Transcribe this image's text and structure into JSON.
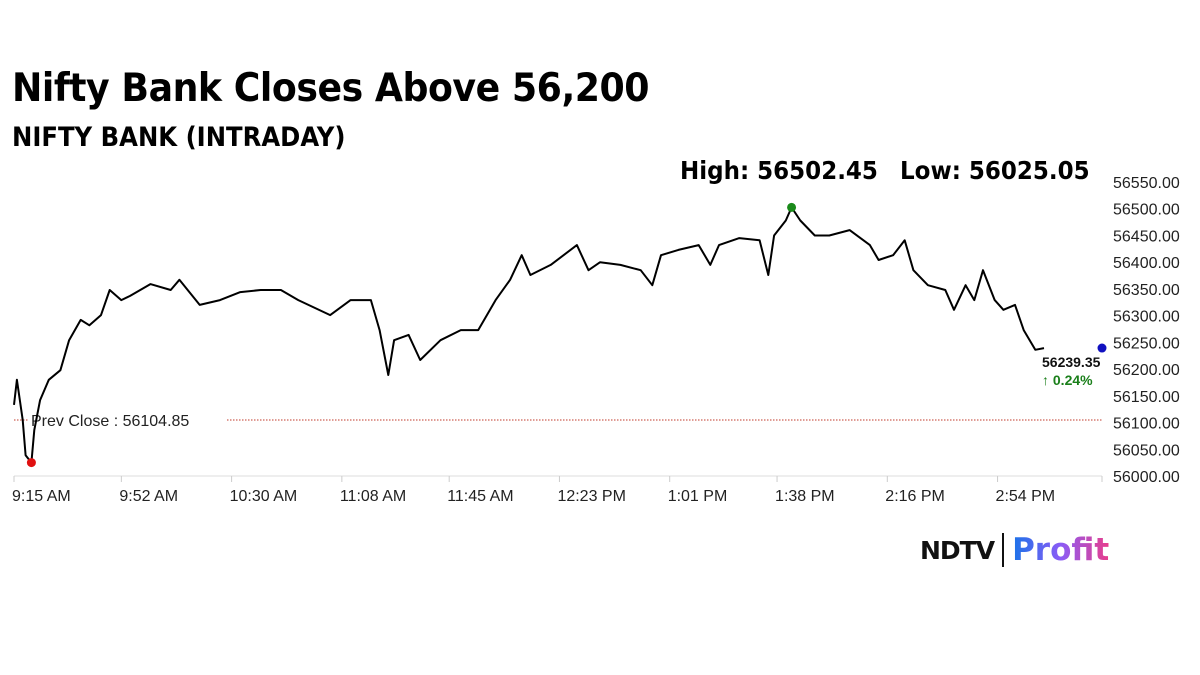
{
  "title": "Nifty Bank Closes Above 56,200",
  "subtitle": "NIFTY BANK (INTRADAY)",
  "high_label": "High: 56502.45",
  "low_label": "Low: 56025.05",
  "logo": {
    "brand": "NDTV",
    "product": "Profit"
  },
  "chart_data": {
    "type": "line",
    "title": "NIFTY BANK (INTRADAY)",
    "ylim": [
      56000,
      56550
    ],
    "y_ticks": [
      "56000.00",
      "56050.00",
      "56100.00",
      "56150.00",
      "56200.00",
      "56250.00",
      "56300.00",
      "56350.00",
      "56400.00",
      "56450.00",
      "56500.00",
      "56550.00"
    ],
    "x_range": [
      "09:15",
      "15:30"
    ],
    "x_ticks": [
      {
        "t": "09:15",
        "label": "9:15 AM"
      },
      {
        "t": "09:52",
        "label": "9:52 AM"
      },
      {
        "t": "10:30",
        "label": "10:30 AM"
      },
      {
        "t": "11:08",
        "label": "11:08 AM"
      },
      {
        "t": "11:45",
        "label": "11:45 AM"
      },
      {
        "t": "12:23",
        "label": "12:23 PM"
      },
      {
        "t": "13:01",
        "label": "1:01 PM"
      },
      {
        "t": "13:38",
        "label": "1:38 PM"
      },
      {
        "t": "14:16",
        "label": "2:16 PM"
      },
      {
        "t": "14:54",
        "label": "2:54 PM"
      }
    ],
    "grid": false,
    "prev_close": {
      "value": 56104.85,
      "label": "Prev Close : 56104.85",
      "color": "#c0392b"
    },
    "last": {
      "value_label": "56239.35",
      "change_label": "↑ 0.24%",
      "change_color": "#1a7f1a"
    },
    "markers": [
      {
        "name": "low",
        "t": "09:21",
        "value": 56025.05,
        "color": "#e01010"
      },
      {
        "name": "high",
        "t": "13:43",
        "value": 56502.45,
        "color": "#1a8a1a"
      },
      {
        "name": "close",
        "t": "15:30",
        "value": 56239.35,
        "color": "#1010c0"
      }
    ],
    "line_color": "#000000",
    "series": [
      [
        "09:15",
        56133
      ],
      [
        "09:16",
        56180
      ],
      [
        "09:18",
        56105
      ],
      [
        "09:19",
        56039
      ],
      [
        "09:21",
        56025.05
      ],
      [
        "09:22",
        56086
      ],
      [
        "09:24",
        56142
      ],
      [
        "09:27",
        56180
      ],
      [
        "09:31",
        56198
      ],
      [
        "09:34",
        56254
      ],
      [
        "09:38",
        56292
      ],
      [
        "09:41",
        56282
      ],
      [
        "09:45",
        56301
      ],
      [
        "09:48",
        56348
      ],
      [
        "09:52",
        56329
      ],
      [
        "09:55",
        56337
      ],
      [
        "10:02",
        56359
      ],
      [
        "10:09",
        56348
      ],
      [
        "10:12",
        56367
      ],
      [
        "10:19",
        56320
      ],
      [
        "10:26",
        56329
      ],
      [
        "10:33",
        56344
      ],
      [
        "10:40",
        56348
      ],
      [
        "10:47",
        56348
      ],
      [
        "10:53",
        56329
      ],
      [
        "11:04",
        56301
      ],
      [
        "11:11",
        56329
      ],
      [
        "11:18",
        56329
      ],
      [
        "11:21",
        56273
      ],
      [
        "11:24",
        56189
      ],
      [
        "11:26",
        56254
      ],
      [
        "11:31",
        56264
      ],
      [
        "11:35",
        56217
      ],
      [
        "11:42",
        56254
      ],
      [
        "11:49",
        56273
      ],
      [
        "11:55",
        56273
      ],
      [
        "12:01",
        56329
      ],
      [
        "12:06",
        56367
      ],
      [
        "12:10",
        56413
      ],
      [
        "12:13",
        56376
      ],
      [
        "12:20",
        56395
      ],
      [
        "12:29",
        56432
      ],
      [
        "12:33",
        56385
      ],
      [
        "12:37",
        56400
      ],
      [
        "12:44",
        56395
      ],
      [
        "12:51",
        56385
      ],
      [
        "12:55",
        56357
      ],
      [
        "12:58",
        56413
      ],
      [
        "13:04",
        56423
      ],
      [
        "13:11",
        56432
      ],
      [
        "13:15",
        56395
      ],
      [
        "13:18",
        56432
      ],
      [
        "13:25",
        56445
      ],
      [
        "13:32",
        56441
      ],
      [
        "13:35",
        56376
      ],
      [
        "13:37",
        56450
      ],
      [
        "13:41",
        56478
      ],
      [
        "13:43",
        56502.45
      ],
      [
        "13:46",
        56478
      ],
      [
        "13:51",
        56450
      ],
      [
        "13:56",
        56450
      ],
      [
        "14:03",
        56460
      ],
      [
        "14:10",
        56432
      ],
      [
        "14:13",
        56404
      ],
      [
        "14:18",
        56413
      ],
      [
        "14:22",
        56441
      ],
      [
        "14:25",
        56385
      ],
      [
        "14:30",
        56357
      ],
      [
        "14:36",
        56348
      ],
      [
        "14:39",
        56311
      ],
      [
        "14:43",
        56357
      ],
      [
        "14:46",
        56329
      ],
      [
        "14:49",
        56385
      ],
      [
        "14:53",
        56329
      ],
      [
        "14:56",
        56311
      ],
      [
        "15:00",
        56320
      ],
      [
        "15:03",
        56273
      ],
      [
        "15:07",
        56236
      ],
      [
        "15:10",
        56239.35
      ]
    ]
  }
}
